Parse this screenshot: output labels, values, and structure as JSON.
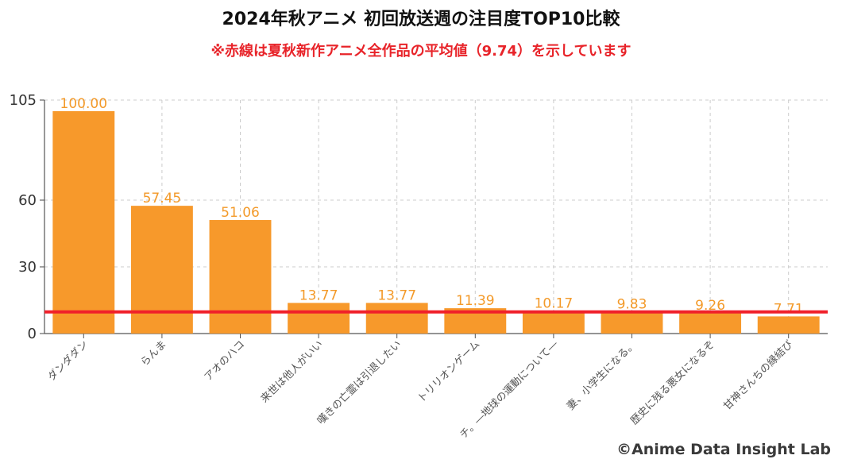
{
  "chart_data": {
    "type": "bar",
    "title": "2024年秋アニメ 初回放送週の注目度TOP10比較",
    "subtitle": "※赤線は夏秋新作アニメ全作品の平均値（9.74）を示しています",
    "categories": [
      "ダンダダン",
      "らんま",
      "アオのハコ",
      "来世は他人がいい",
      "嘆きの亡霊は引退したい",
      "トリリオンゲーム",
      "チ。―地球の運動について―",
      "妻、小学生になる。",
      "歴史に残る悪女になるぞ",
      "甘神さんちの縁結び"
    ],
    "values": [
      100.0,
      57.45,
      51.06,
      13.77,
      13.77,
      11.39,
      10.17,
      9.83,
      9.26,
      7.71
    ],
    "value_labels": [
      "100.00",
      "57.45",
      "51.06",
      "13.77",
      "13.77",
      "11.39",
      "10.17",
      "9.83",
      "9.26",
      "7.71"
    ],
    "yticks": [
      0,
      30,
      60,
      105
    ],
    "ytick_labels": [
      "0",
      "30",
      "60",
      "105"
    ],
    "ylim": [
      0,
      105
    ],
    "average_line": 9.74,
    "grid": true,
    "xlabel": "",
    "ylabel": "",
    "bar_color": "#f7992b",
    "line_color": "#f0202a"
  },
  "credit": "©Anime Data Insight Lab"
}
